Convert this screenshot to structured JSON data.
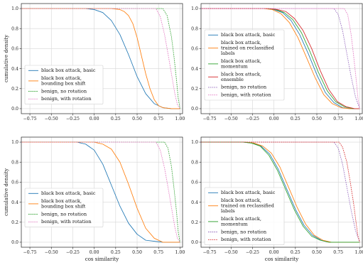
{
  "colors": {
    "blue": "#1f77b4",
    "orange": "#ff7f0e",
    "green": "#2ca02c",
    "red": "#d62728",
    "purple": "#9467bd",
    "pink": "#e377c2"
  },
  "chart_data": [
    {
      "type": "line",
      "xlabel": "",
      "ylabel": "cumulative density",
      "xlim": [
        -0.85,
        1.03
      ],
      "ylim": [
        -0.05,
        1.05
      ],
      "xticks": [
        "−0.75",
        "−0.50",
        "−0.25",
        "0.00",
        "0.25",
        "0.50",
        "0.75",
        "1.00"
      ],
      "yticks": [
        "0.0",
        "0.2",
        "0.4",
        "0.6",
        "0.8",
        "1.0"
      ],
      "grid": true,
      "legend_position": "lower-left",
      "series": [
        {
          "name": "black box attack, basic",
          "color": "blue",
          "dash": "solid",
          "x": [
            -0.85,
            -0.1,
            0.0,
            0.1,
            0.2,
            0.3,
            0.4,
            0.5,
            0.6,
            0.7,
            0.8,
            0.9,
            1.0
          ],
          "y": [
            1.0,
            1.0,
            0.99,
            0.96,
            0.88,
            0.74,
            0.54,
            0.32,
            0.15,
            0.05,
            0.01,
            0.0,
            0.0
          ]
        },
        {
          "name": "black box attack,\nbounding box shift",
          "color": "orange",
          "dash": "solid",
          "x": [
            -0.85,
            0.2,
            0.3,
            0.35,
            0.4,
            0.45,
            0.5,
            0.55,
            0.6,
            0.65,
            0.7,
            0.75,
            0.8,
            0.9,
            1.0
          ],
          "y": [
            1.0,
            1.0,
            0.99,
            0.97,
            0.93,
            0.85,
            0.71,
            0.53,
            0.35,
            0.2,
            0.09,
            0.03,
            0.01,
            0.0,
            0.0
          ]
        },
        {
          "name": "benign, no rotation",
          "color": "green",
          "dash": "dashed",
          "x": [
            -0.85,
            0.8,
            0.85,
            0.9,
            0.93,
            0.96,
            0.98,
            1.0
          ],
          "y": [
            1.0,
            1.0,
            0.93,
            0.72,
            0.52,
            0.28,
            0.1,
            0.0
          ]
        },
        {
          "name": "benign, with rotation",
          "color": "pink",
          "dash": "dashed",
          "x": [
            -0.85,
            0.72,
            0.77,
            0.82,
            0.86,
            0.9,
            0.94,
            0.97,
            1.0
          ],
          "y": [
            1.0,
            1.0,
            0.92,
            0.74,
            0.55,
            0.35,
            0.15,
            0.04,
            0.0
          ]
        }
      ]
    },
    {
      "type": "line",
      "xlabel": "",
      "ylabel": "",
      "xlim": [
        -0.85,
        1.03
      ],
      "ylim": [
        -0.05,
        1.05
      ],
      "xticks": [
        "−0.75",
        "−0.50",
        "−0.25",
        "0.00",
        "0.25",
        "0.50",
        "0.75",
        "1.00"
      ],
      "yticks": [
        "0.0",
        "0.2",
        "0.4",
        "0.6",
        "0.8",
        "1.0"
      ],
      "grid": true,
      "legend_position": "upper-left",
      "series": [
        {
          "name": "black box attack, basic",
          "color": "blue",
          "dash": "solid",
          "x": [
            -0.85,
            -0.1,
            0.0,
            0.1,
            0.2,
            0.3,
            0.4,
            0.5,
            0.6,
            0.7,
            0.8,
            0.9,
            1.0
          ],
          "y": [
            1.0,
            1.0,
            0.99,
            0.96,
            0.88,
            0.74,
            0.55,
            0.34,
            0.16,
            0.06,
            0.01,
            0.0,
            0.0
          ]
        },
        {
          "name": "black box attack,\ntrained on reclassified\nlabels",
          "color": "orange",
          "dash": "solid",
          "x": [
            -0.85,
            -0.12,
            -0.02,
            0.08,
            0.18,
            0.28,
            0.38,
            0.48,
            0.58,
            0.68,
            0.78,
            0.88,
            1.0
          ],
          "y": [
            1.0,
            1.0,
            0.99,
            0.95,
            0.86,
            0.71,
            0.51,
            0.31,
            0.14,
            0.05,
            0.01,
            0.0,
            0.0
          ]
        },
        {
          "name": "black box attack,\nmomentum",
          "color": "green",
          "dash": "solid",
          "x": [
            -0.85,
            -0.08,
            0.02,
            0.12,
            0.22,
            0.32,
            0.42,
            0.52,
            0.62,
            0.72,
            0.82,
            0.92,
            1.0
          ],
          "y": [
            1.0,
            1.0,
            0.99,
            0.96,
            0.89,
            0.76,
            0.57,
            0.36,
            0.18,
            0.07,
            0.02,
            0.0,
            0.0
          ]
        },
        {
          "name": "black box attack,\nensemble",
          "color": "red",
          "dash": "solid",
          "x": [
            -0.85,
            -0.06,
            0.04,
            0.14,
            0.24,
            0.34,
            0.44,
            0.54,
            0.64,
            0.74,
            0.84,
            0.94,
            1.0
          ],
          "y": [
            1.0,
            1.0,
            0.99,
            0.97,
            0.9,
            0.78,
            0.6,
            0.38,
            0.19,
            0.07,
            0.02,
            0.0,
            0.0
          ]
        },
        {
          "name": "benign, no rotation",
          "color": "purple",
          "dash": "dashed",
          "x": [
            -0.85,
            0.7,
            0.75,
            0.8,
            0.85,
            0.9,
            0.95,
            1.0
          ],
          "y": [
            1.0,
            1.0,
            0.94,
            0.78,
            0.55,
            0.32,
            0.12,
            0.0
          ]
        },
        {
          "name": "benign, with rotation",
          "color": "pink",
          "dash": "dashed",
          "x": [
            -0.85,
            0.82,
            0.86,
            0.9,
            0.93,
            0.96,
            0.98,
            1.0
          ],
          "y": [
            1.0,
            1.0,
            0.94,
            0.74,
            0.52,
            0.28,
            0.1,
            0.0
          ]
        }
      ]
    },
    {
      "type": "line",
      "xlabel": "cos similarity",
      "ylabel": "cumulative density",
      "xlim": [
        -0.85,
        1.03
      ],
      "ylim": [
        -0.05,
        1.05
      ],
      "xticks": [
        "−0.75",
        "−0.50",
        "−0.25",
        "0.00",
        "0.25",
        "0.50",
        "0.75",
        "1.00"
      ],
      "yticks": [
        "0.0",
        "0.2",
        "0.4",
        "0.6",
        "0.8",
        "1.0"
      ],
      "grid": true,
      "legend_position": "lower-left",
      "series": [
        {
          "name": "black box attack, basic",
          "color": "blue",
          "dash": "solid",
          "x": [
            -0.85,
            -0.2,
            -0.1,
            0.0,
            0.1,
            0.2,
            0.3,
            0.4,
            0.5,
            0.6,
            0.7,
            0.8,
            1.0
          ],
          "y": [
            1.0,
            1.0,
            0.98,
            0.92,
            0.78,
            0.57,
            0.36,
            0.19,
            0.08,
            0.02,
            0.01,
            0.0,
            0.0
          ]
        },
        {
          "name": "black box attack,\nbounding box shift",
          "color": "orange",
          "dash": "solid",
          "x": [
            -0.85,
            0.0,
            0.1,
            0.2,
            0.3,
            0.4,
            0.5,
            0.6,
            0.7,
            0.8,
            1.0
          ],
          "y": [
            1.0,
            1.0,
            0.98,
            0.93,
            0.8,
            0.58,
            0.34,
            0.14,
            0.04,
            0.0,
            0.0
          ]
        },
        {
          "name": "benign, no rotation",
          "color": "green",
          "dash": "dashed",
          "x": [
            -0.85,
            0.82,
            0.86,
            0.9,
            0.93,
            0.96,
            0.98,
            1.0
          ],
          "y": [
            1.0,
            1.0,
            0.94,
            0.76,
            0.54,
            0.3,
            0.1,
            0.0
          ]
        },
        {
          "name": "benign, with rotation",
          "color": "pink",
          "dash": "dashed",
          "x": [
            -0.85,
            0.72,
            0.77,
            0.82,
            0.86,
            0.9,
            0.94,
            0.97,
            1.0
          ],
          "y": [
            1.0,
            1.0,
            0.92,
            0.74,
            0.55,
            0.35,
            0.15,
            0.04,
            0.0
          ]
        }
      ]
    },
    {
      "type": "line",
      "xlabel": "cos similarity",
      "ylabel": "",
      "xlim": [
        -0.85,
        1.03
      ],
      "ylim": [
        -0.05,
        1.05
      ],
      "xticks": [
        "−0.75",
        "−0.50",
        "−0.25",
        "0.00",
        "0.25",
        "0.50",
        "0.75",
        "1.00"
      ],
      "yticks": [
        "0.0",
        "0.2",
        "0.4",
        "0.6",
        "0.8",
        "1.0"
      ],
      "grid": true,
      "legend_position": "lower-left",
      "series": [
        {
          "name": "black box attack, basic",
          "color": "blue",
          "dash": "solid",
          "x": [
            -0.85,
            -0.35,
            -0.25,
            -0.15,
            -0.05,
            0.05,
            0.15,
            0.25,
            0.35,
            0.45,
            0.55,
            0.65,
            0.75,
            1.0
          ],
          "y": [
            1.0,
            1.0,
            0.99,
            0.96,
            0.88,
            0.73,
            0.53,
            0.33,
            0.17,
            0.07,
            0.02,
            0.0,
            0.0,
            0.0
          ]
        },
        {
          "name": "black box attack,\ntrained on reclassified\nlabels",
          "color": "orange",
          "dash": "solid",
          "x": [
            -0.85,
            -0.33,
            -0.23,
            -0.13,
            -0.03,
            0.07,
            0.17,
            0.27,
            0.37,
            0.47,
            0.57,
            0.67,
            0.77,
            1.0
          ],
          "y": [
            1.0,
            1.0,
            0.99,
            0.96,
            0.89,
            0.75,
            0.55,
            0.35,
            0.18,
            0.07,
            0.02,
            0.0,
            0.0,
            0.0
          ]
        },
        {
          "name": "black box attack,\nmomentum",
          "color": "green",
          "dash": "solid",
          "x": [
            -0.85,
            -0.36,
            -0.26,
            -0.16,
            -0.06,
            0.04,
            0.14,
            0.24,
            0.34,
            0.44,
            0.54,
            0.64,
            0.74,
            1.0
          ],
          "y": [
            1.0,
            1.0,
            0.99,
            0.96,
            0.87,
            0.72,
            0.52,
            0.32,
            0.16,
            0.06,
            0.02,
            0.0,
            0.0,
            0.0
          ]
        },
        {
          "name": "benign, no rotation",
          "color": "purple",
          "dash": "dashed",
          "x": [
            -0.85,
            0.7,
            0.75,
            0.8,
            0.85,
            0.9,
            0.95,
            1.0
          ],
          "y": [
            1.0,
            1.0,
            0.94,
            0.78,
            0.55,
            0.32,
            0.12,
            0.0
          ]
        },
        {
          "name": "benign, with rotation",
          "color": "red",
          "dash": "dashed",
          "x": [
            -0.85,
            0.76,
            0.8,
            0.85,
            0.89,
            0.93,
            0.96,
            0.98,
            1.0
          ],
          "y": [
            1.0,
            1.0,
            0.95,
            0.8,
            0.6,
            0.38,
            0.18,
            0.06,
            0.0
          ]
        }
      ]
    }
  ]
}
